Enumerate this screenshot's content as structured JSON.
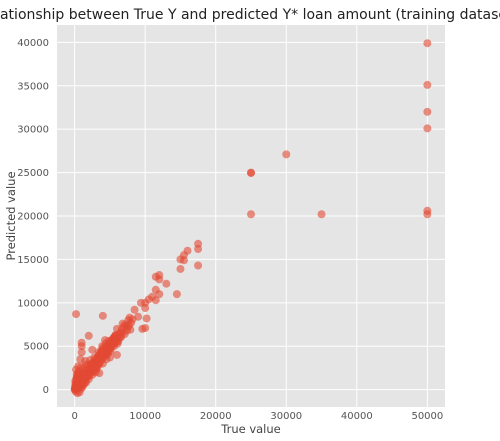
{
  "chart_data": {
    "type": "scatter",
    "title": "relationship between True Y and predicted Y* loan amount (training dataset)",
    "xlabel": "True value",
    "ylabel": "Predicted value",
    "xlim": [
      -2500,
      52500
    ],
    "ylim": [
      -2000,
      42000
    ],
    "xticks": [
      0,
      10000,
      20000,
      30000,
      40000,
      50000
    ],
    "xtick_labels": [
      "0",
      "10000",
      "20000",
      "30000",
      "40000",
      "50000"
    ],
    "yticks": [
      0,
      5000,
      10000,
      15000,
      20000,
      25000,
      30000,
      35000,
      40000
    ],
    "ytick_labels": [
      "0",
      "5000",
      "10000",
      "15000",
      "20000",
      "25000",
      "30000",
      "35000",
      "40000"
    ],
    "grid": true,
    "colors": {
      "background": "#e5e5e5",
      "grid": "#ffffff",
      "marker": "#e24a33"
    },
    "series": [
      {
        "points": [
          [
            50000,
            39900
          ],
          [
            50000,
            35100
          ],
          [
            50000,
            32000
          ],
          [
            50000,
            30100
          ],
          [
            50000,
            20600
          ],
          [
            50000,
            20200
          ],
          [
            30000,
            27100
          ],
          [
            25000,
            25000
          ],
          [
            25000,
            24950
          ],
          [
            25000,
            20200
          ],
          [
            35000,
            20200
          ],
          [
            17500,
            16800
          ],
          [
            17500,
            16200
          ],
          [
            17500,
            14300
          ],
          [
            16000,
            16000
          ],
          [
            15500,
            15500
          ],
          [
            15000,
            15000
          ],
          [
            15500,
            14900
          ],
          [
            15000,
            13900
          ],
          [
            14500,
            11000
          ],
          [
            13000,
            12200
          ],
          [
            12000,
            12700
          ],
          [
            12000,
            13200
          ],
          [
            11500,
            11500
          ],
          [
            11500,
            13000
          ],
          [
            12000,
            11000
          ],
          [
            11000,
            10700
          ],
          [
            11500,
            10300
          ],
          [
            10500,
            10400
          ],
          [
            10000,
            10000
          ],
          [
            10000,
            9400
          ],
          [
            10200,
            8200
          ],
          [
            10000,
            7100
          ],
          [
            9600,
            7000
          ],
          [
            9400,
            10000
          ],
          [
            7800,
            8300
          ],
          [
            7500,
            7200
          ],
          [
            7600,
            8000
          ],
          [
            7900,
            6900
          ],
          [
            7200,
            7500
          ],
          [
            6700,
            7000
          ],
          [
            6500,
            6600
          ],
          [
            6500,
            6000
          ],
          [
            6200,
            6000
          ],
          [
            6000,
            5500
          ],
          [
            5500,
            5600
          ],
          [
            5500,
            5900
          ],
          [
            5000,
            5100
          ],
          [
            5000,
            4600
          ],
          [
            4800,
            4800
          ],
          [
            4500,
            4500
          ],
          [
            4500,
            4000
          ],
          [
            4300,
            5700
          ],
          [
            4000,
            4200
          ],
          [
            4000,
            3600
          ],
          [
            3800,
            4500
          ],
          [
            3600,
            3500
          ],
          [
            3500,
            3800
          ],
          [
            3400,
            3200
          ],
          [
            3300,
            3800
          ],
          [
            3000,
            3000
          ],
          [
            3000,
            2500
          ],
          [
            3000,
            3300
          ],
          [
            2800,
            2700
          ],
          [
            2500,
            2600
          ],
          [
            2500,
            2200
          ],
          [
            2300,
            2500
          ],
          [
            2000,
            2000
          ],
          [
            2000,
            1800
          ],
          [
            2000,
            2300
          ],
          [
            1800,
            1800
          ],
          [
            1500,
            1500
          ],
          [
            1500,
            1700
          ],
          [
            1300,
            1200
          ],
          [
            1000,
            1000
          ],
          [
            1000,
            1300
          ],
          [
            800,
            800
          ],
          [
            600,
            700
          ],
          [
            500,
            500
          ],
          [
            300,
            400
          ],
          [
            200,
            200
          ],
          [
            100,
            100
          ],
          [
            0,
            0
          ],
          [
            50,
            300
          ],
          [
            150,
            -200
          ],
          [
            300,
            1200
          ],
          [
            500,
            2000
          ],
          [
            700,
            1600
          ],
          [
            900,
            2600
          ],
          [
            400,
            900
          ],
          [
            250,
            600
          ],
          [
            1200,
            2400
          ],
          [
            1600,
            2900
          ],
          [
            2200,
            3400
          ],
          [
            2600,
            3100
          ],
          [
            3200,
            2600
          ],
          [
            3700,
            4200
          ],
          [
            4200,
            4700
          ],
          [
            4700,
            4200
          ],
          [
            5200,
            4900
          ],
          [
            5800,
            6300
          ],
          [
            6100,
            5300
          ],
          [
            6800,
            7600
          ],
          [
            7100,
            6400
          ],
          [
            8000,
            7700
          ],
          [
            2000,
            1200
          ],
          [
            1500,
            900
          ],
          [
            1000,
            500
          ],
          [
            700,
            300
          ],
          [
            2500,
            1700
          ],
          [
            3000,
            2000
          ],
          [
            3500,
            2900
          ],
          [
            4000,
            3000
          ],
          [
            4500,
            3500
          ],
          [
            4000,
            4800
          ],
          [
            1200,
            1900
          ],
          [
            800,
            1400
          ],
          [
            1400,
            2200
          ],
          [
            1900,
            2800
          ],
          [
            2400,
            3000
          ],
          [
            2800,
            3700
          ],
          [
            3400,
            4300
          ],
          [
            3900,
            5000
          ],
          [
            4400,
            5300
          ],
          [
            4800,
            5600
          ],
          [
            5300,
            5300
          ],
          [
            5700,
            6100
          ],
          [
            6300,
            6400
          ],
          [
            6800,
            6600
          ],
          [
            6000,
            7000
          ],
          [
            7000,
            7300
          ],
          [
            1000,
            5400
          ],
          [
            1000,
            5000
          ],
          [
            200,
            8700
          ],
          [
            2000,
            6200
          ],
          [
            4000,
            8500
          ],
          [
            2500,
            4600
          ],
          [
            1000,
            4300
          ],
          [
            1500,
            3300
          ],
          [
            500,
            2700
          ],
          [
            300,
            1700
          ],
          [
            100,
            1000
          ],
          [
            200,
            2300
          ],
          [
            800,
            3500
          ],
          [
            3500,
            1900
          ],
          [
            5000,
            3700
          ],
          [
            6000,
            4000
          ],
          [
            9000,
            8400
          ],
          [
            8500,
            9200
          ],
          [
            500,
            1100
          ],
          [
            600,
            200
          ],
          [
            1100,
            700
          ],
          [
            1700,
            1400
          ],
          [
            2100,
            1600
          ],
          [
            2700,
            2100
          ],
          [
            3100,
            2400
          ],
          [
            3300,
            2900
          ],
          [
            3700,
            3300
          ],
          [
            4100,
            3800
          ],
          [
            4600,
            4100
          ],
          [
            5100,
            4400
          ],
          [
            5600,
            5000
          ],
          [
            6200,
            5600
          ],
          [
            6600,
            6100
          ],
          [
            7400,
            6800
          ],
          [
            7700,
            7400
          ],
          [
            8200,
            8100
          ],
          [
            50,
            50
          ],
          [
            80,
            150
          ],
          [
            120,
            250
          ],
          [
            180,
            80
          ],
          [
            220,
            350
          ],
          [
            260,
            150
          ],
          [
            350,
            250
          ],
          [
            420,
            300
          ],
          [
            450,
            650
          ],
          [
            550,
            400
          ],
          [
            650,
            550
          ],
          [
            750,
            950
          ],
          [
            850,
            650
          ],
          [
            950,
            800
          ],
          [
            1050,
            1100
          ],
          [
            1150,
            900
          ],
          [
            1250,
            1500
          ],
          [
            1350,
            1100
          ],
          [
            1450,
            1300
          ],
          [
            1550,
            1900
          ],
          [
            1650,
            1600
          ],
          [
            1750,
            2100
          ],
          [
            1850,
            1500
          ],
          [
            1950,
            2400
          ],
          [
            2050,
            1900
          ],
          [
            2150,
            2700
          ],
          [
            2350,
            2000
          ],
          [
            2450,
            2900
          ],
          [
            2550,
            2300
          ],
          [
            2650,
            2800
          ],
          [
            2750,
            3100
          ],
          [
            2850,
            2500
          ],
          [
            2950,
            3500
          ],
          [
            3050,
            2800
          ],
          [
            3150,
            3200
          ],
          [
            3250,
            3600
          ],
          [
            3350,
            3000
          ],
          [
            3450,
            4000
          ],
          [
            3550,
            3300
          ],
          [
            3650,
            4100
          ],
          [
            3750,
            3600
          ],
          [
            3850,
            4300
          ],
          [
            3950,
            3900
          ],
          [
            4050,
            4500
          ],
          [
            4150,
            4100
          ],
          [
            4250,
            4400
          ],
          [
            4350,
            4800
          ],
          [
            4450,
            4300
          ],
          [
            4550,
            5000
          ],
          [
            4650,
            4600
          ],
          [
            4750,
            5100
          ],
          [
            4850,
            4700
          ],
          [
            4950,
            5300
          ],
          [
            5050,
            4900
          ],
          [
            5150,
            5600
          ],
          [
            5250,
            5100
          ],
          [
            5350,
            5800
          ],
          [
            5450,
            5200
          ],
          [
            5550,
            6000
          ],
          [
            5650,
            5400
          ],
          [
            5750,
            6200
          ],
          [
            5850,
            5700
          ],
          [
            100,
            600
          ],
          [
            150,
            800
          ],
          [
            250,
            1300
          ],
          [
            350,
            1500
          ],
          [
            450,
            1800
          ],
          [
            600,
            2100
          ],
          [
            400,
            -400
          ],
          [
            700,
            -300
          ],
          [
            900,
            100
          ],
          [
            1100,
            300
          ],
          [
            1300,
            600
          ],
          [
            1600,
            800
          ]
        ]
      }
    ]
  }
}
